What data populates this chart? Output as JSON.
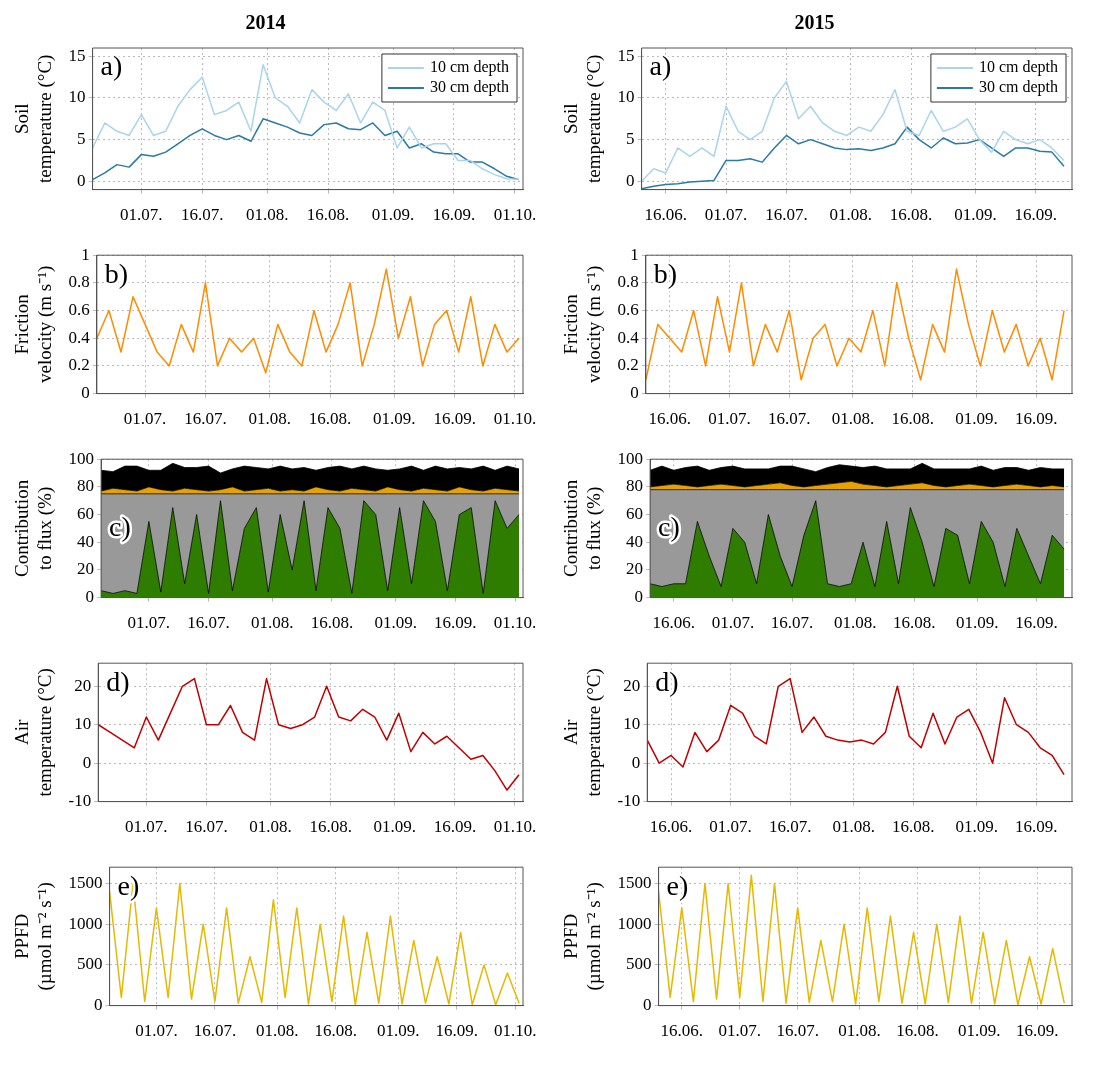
{
  "chart_data": [
    {
      "type": "line",
      "title": "2014",
      "ylabel": "Soil temperature (°C)",
      "annotations": [
        "a)"
      ],
      "legend": "top right",
      "grid": true,
      "x": [
        "2014-06-19",
        "2014-06-22",
        "2014-06-25",
        "2014-06-28",
        "2014-07-01",
        "2014-07-04",
        "2014-07-07",
        "2014-07-10",
        "2014-07-13",
        "2014-07-16",
        "2014-07-19",
        "2014-07-22",
        "2014-07-25",
        "2014-07-28",
        "2014-07-31",
        "2014-08-03",
        "2014-08-06",
        "2014-08-09",
        "2014-08-12",
        "2014-08-15",
        "2014-08-18",
        "2014-08-21",
        "2014-08-24",
        "2014-08-27",
        "2014-08-30",
        "2014-09-02",
        "2014-09-05",
        "2014-09-08",
        "2014-09-11",
        "2014-09-14",
        "2014-09-17",
        "2014-09-20",
        "2014-09-23",
        "2014-09-26",
        "2014-09-29",
        "2014-10-02"
      ],
      "xlim": [
        "2014-06-19",
        "2014-10-03"
      ],
      "xticks": [
        {
          "value": "2014-07-01",
          "label": "01.07."
        },
        {
          "value": "2014-07-16",
          "label": "16.07."
        },
        {
          "value": "2014-08-01",
          "label": "01.08."
        },
        {
          "value": "2014-08-16",
          "label": "16.08."
        },
        {
          "value": "2014-09-01",
          "label": "01.09."
        },
        {
          "value": "2014-09-16",
          "label": "16.09."
        },
        {
          "value": "2014-10-01",
          "label": "01.10."
        }
      ],
      "ylim": [
        -1,
        16
      ],
      "yticks": [
        0,
        5,
        10,
        15
      ],
      "series": [
        {
          "name": "10 cm depth",
          "color": "#a8d5ec",
          "values": [
            4,
            7,
            6,
            5.5,
            8,
            5.5,
            6,
            9,
            11,
            12.5,
            8,
            8.5,
            9.5,
            6,
            14,
            10,
            9,
            7,
            11,
            9.5,
            8.5,
            10.5,
            7,
            9.5,
            8.5,
            4,
            6.5,
            4,
            4.5,
            4.5,
            2.5,
            2.5,
            1.5,
            0.8,
            0.3,
            0.2
          ]
        },
        {
          "name": "30 cm depth",
          "color": "#2a7aa8",
          "values": [
            0.2,
            1,
            2,
            1.7,
            3.2,
            3,
            3.5,
            4.5,
            5.5,
            6.3,
            5.5,
            5,
            5.5,
            4.8,
            7.5,
            7,
            6.5,
            5.8,
            5.5,
            6.8,
            7,
            6.3,
            6.2,
            7,
            5.5,
            6,
            4,
            4.5,
            3.5,
            3.3,
            3.3,
            2.3,
            2.3,
            1.5,
            0.6,
            0.2
          ]
        }
      ]
    },
    {
      "type": "line",
      "title": "2015",
      "ylabel": "Soil temperature (°C)",
      "annotations": [
        "a)"
      ],
      "legend": "top right",
      "grid": true,
      "x": [
        "2015-06-10",
        "2015-06-13",
        "2015-06-16",
        "2015-06-19",
        "2015-06-22",
        "2015-06-25",
        "2015-06-28",
        "2015-07-01",
        "2015-07-04",
        "2015-07-07",
        "2015-07-10",
        "2015-07-13",
        "2015-07-16",
        "2015-07-19",
        "2015-07-22",
        "2015-07-25",
        "2015-07-28",
        "2015-07-31",
        "2015-08-03",
        "2015-08-06",
        "2015-08-09",
        "2015-08-12",
        "2015-08-15",
        "2015-08-18",
        "2015-08-21",
        "2015-08-24",
        "2015-08-27",
        "2015-08-30",
        "2015-09-02",
        "2015-09-05",
        "2015-09-08",
        "2015-09-11",
        "2015-09-14",
        "2015-09-17",
        "2015-09-20",
        "2015-09-23"
      ],
      "xlim": [
        "2015-06-10",
        "2015-09-25"
      ],
      "xticks": [
        {
          "value": "2015-06-16",
          "label": "16.06."
        },
        {
          "value": "2015-07-01",
          "label": "01.07."
        },
        {
          "value": "2015-07-16",
          "label": "16.07."
        },
        {
          "value": "2015-08-01",
          "label": "01.08."
        },
        {
          "value": "2015-08-16",
          "label": "16.08."
        },
        {
          "value": "2015-09-01",
          "label": "01.09."
        },
        {
          "value": "2015-09-16",
          "label": "16.09."
        }
      ],
      "ylim": [
        -1,
        16
      ],
      "yticks": [
        0,
        5,
        10,
        15
      ],
      "series": [
        {
          "name": "10 cm depth",
          "color": "#a8d5ec",
          "values": [
            0,
            1.5,
            1,
            4,
            3,
            4,
            3,
            9,
            6,
            5,
            6,
            10,
            12,
            7.5,
            9,
            7,
            6,
            5.5,
            6.5,
            6,
            8,
            11,
            6,
            5.5,
            8.5,
            6,
            6.5,
            7.5,
            5,
            3.5,
            6,
            5,
            4.5,
            5,
            4,
            2.5
          ]
        },
        {
          "name": "30 cm depth",
          "color": "#2a7aa8",
          "values": [
            -0.9,
            -0.6,
            -0.4,
            -0.3,
            -0.1,
            0,
            0.1,
            2.5,
            2.5,
            2.7,
            2.3,
            4,
            5.5,
            4.5,
            5,
            4.5,
            4,
            3.8,
            3.9,
            3.7,
            4,
            4.5,
            6.5,
            5,
            4,
            5.2,
            4.5,
            4.6,
            5,
            4,
            3,
            4,
            4,
            3.6,
            3.5,
            1.8
          ]
        }
      ]
    },
    {
      "type": "line",
      "ylabel": "Friction velocity (m s⁻¹)",
      "annotations": [
        "b)"
      ],
      "grid": true,
      "x": [
        "2014-06-19",
        "2014-06-22",
        "2014-06-25",
        "2014-06-28",
        "2014-07-01",
        "2014-07-04",
        "2014-07-07",
        "2014-07-10",
        "2014-07-13",
        "2014-07-16",
        "2014-07-19",
        "2014-07-22",
        "2014-07-25",
        "2014-07-28",
        "2014-07-31",
        "2014-08-03",
        "2014-08-06",
        "2014-08-09",
        "2014-08-12",
        "2014-08-15",
        "2014-08-18",
        "2014-08-21",
        "2014-08-24",
        "2014-08-27",
        "2014-08-30",
        "2014-09-02",
        "2014-09-05",
        "2014-09-08",
        "2014-09-11",
        "2014-09-14",
        "2014-09-17",
        "2014-09-20",
        "2014-09-23",
        "2014-09-26",
        "2014-09-29",
        "2014-10-02"
      ],
      "xlim": [
        "2014-06-19",
        "2014-10-03"
      ],
      "xticks": [
        {
          "value": "2014-07-01",
          "label": "01.07."
        },
        {
          "value": "2014-07-16",
          "label": "16.07."
        },
        {
          "value": "2014-08-01",
          "label": "01.08."
        },
        {
          "value": "2014-08-16",
          "label": "16.08."
        },
        {
          "value": "2014-09-01",
          "label": "01.09."
        },
        {
          "value": "2014-09-16",
          "label": "16.09."
        },
        {
          "value": "2014-10-01",
          "label": "01.10."
        }
      ],
      "ylim": [
        0,
        1
      ],
      "yticks": [
        0,
        0.2,
        0.4,
        0.6,
        0.8,
        1
      ],
      "series": [
        {
          "color": "#ff8c00",
          "values": [
            0.4,
            0.6,
            0.3,
            0.7,
            0.5,
            0.3,
            0.2,
            0.5,
            0.3,
            0.8,
            0.2,
            0.4,
            0.3,
            0.4,
            0.15,
            0.5,
            0.3,
            0.2,
            0.6,
            0.3,
            0.5,
            0.8,
            0.2,
            0.5,
            0.9,
            0.4,
            0.7,
            0.2,
            0.5,
            0.6,
            0.3,
            0.7,
            0.2,
            0.5,
            0.3,
            0.4
          ]
        }
      ]
    },
    {
      "type": "line",
      "ylabel": "Friction velocity (m s⁻¹)",
      "annotations": [
        "b)"
      ],
      "grid": true,
      "x": [
        "2015-06-10",
        "2015-06-13",
        "2015-06-16",
        "2015-06-19",
        "2015-06-22",
        "2015-06-25",
        "2015-06-28",
        "2015-07-01",
        "2015-07-04",
        "2015-07-07",
        "2015-07-10",
        "2015-07-13",
        "2015-07-16",
        "2015-07-19",
        "2015-07-22",
        "2015-07-25",
        "2015-07-28",
        "2015-07-31",
        "2015-08-03",
        "2015-08-06",
        "2015-08-09",
        "2015-08-12",
        "2015-08-15",
        "2015-08-18",
        "2015-08-21",
        "2015-08-24",
        "2015-08-27",
        "2015-08-30",
        "2015-09-02",
        "2015-09-05",
        "2015-09-08",
        "2015-09-11",
        "2015-09-14",
        "2015-09-17",
        "2015-09-20",
        "2015-09-23"
      ],
      "xlim": [
        "2015-06-10",
        "2015-09-25"
      ],
      "xticks": [
        {
          "value": "2015-06-16",
          "label": "16.06."
        },
        {
          "value": "2015-07-01",
          "label": "01.07."
        },
        {
          "value": "2015-07-16",
          "label": "16.07."
        },
        {
          "value": "2015-08-01",
          "label": "01.08."
        },
        {
          "value": "2015-08-16",
          "label": "16.08."
        },
        {
          "value": "2015-09-01",
          "label": "01.09."
        },
        {
          "value": "2015-09-16",
          "label": "16.09."
        }
      ],
      "ylim": [
        0,
        1
      ],
      "yticks": [
        0,
        0.2,
        0.4,
        0.6,
        0.8,
        1
      ],
      "series": [
        {
          "color": "#ff8c00",
          "values": [
            0.1,
            0.5,
            0.4,
            0.3,
            0.6,
            0.2,
            0.7,
            0.3,
            0.8,
            0.2,
            0.5,
            0.3,
            0.6,
            0.1,
            0.4,
            0.5,
            0.2,
            0.4,
            0.3,
            0.6,
            0.2,
            0.8,
            0.4,
            0.1,
            0.5,
            0.3,
            0.9,
            0.5,
            0.2,
            0.6,
            0.3,
            0.5,
            0.2,
            0.4,
            0.1,
            0.6
          ]
        }
      ]
    },
    {
      "type": "area",
      "stacked": true,
      "ylabel": "Contribution to flux (%)",
      "annotations": [
        "c)"
      ],
      "grid": true,
      "x": [
        "2014-06-19",
        "2014-06-22",
        "2014-06-25",
        "2014-06-28",
        "2014-07-01",
        "2014-07-04",
        "2014-07-07",
        "2014-07-10",
        "2014-07-13",
        "2014-07-16",
        "2014-07-19",
        "2014-07-22",
        "2014-07-25",
        "2014-07-28",
        "2014-07-31",
        "2014-08-03",
        "2014-08-06",
        "2014-08-09",
        "2014-08-12",
        "2014-08-15",
        "2014-08-18",
        "2014-08-21",
        "2014-08-24",
        "2014-08-27",
        "2014-08-30",
        "2014-09-02",
        "2014-09-05",
        "2014-09-08",
        "2014-09-11",
        "2014-09-14",
        "2014-09-17",
        "2014-09-20",
        "2014-09-23",
        "2014-09-26",
        "2014-09-29",
        "2014-10-02"
      ],
      "xlim": [
        "2014-06-19",
        "2014-10-03"
      ],
      "xticks": [
        {
          "value": "2014-07-01",
          "label": "01.07."
        },
        {
          "value": "2014-07-16",
          "label": "16.07."
        },
        {
          "value": "2014-08-01",
          "label": "01.08."
        },
        {
          "value": "2014-08-16",
          "label": "16.08."
        },
        {
          "value": "2014-09-01",
          "label": "01.09."
        },
        {
          "value": "2014-09-16",
          "label": "16.09."
        },
        {
          "value": "2014-10-01",
          "label": "01.10."
        }
      ],
      "ylim": [
        0,
        100
      ],
      "yticks": [
        0,
        20,
        40,
        60,
        80,
        100
      ],
      "series": [
        {
          "color": "#2e7d00",
          "values": [
            5,
            3,
            5,
            3,
            55,
            4,
            65,
            10,
            60,
            3,
            70,
            5,
            50,
            65,
            4,
            60,
            20,
            70,
            5,
            65,
            50,
            3,
            70,
            60,
            5,
            65,
            10,
            70,
            55,
            5,
            60,
            65,
            3,
            70,
            50,
            60
          ]
        },
        {
          "color": "#999999",
          "values": [
            70,
            72,
            70,
            72,
            20,
            71,
            10,
            65,
            15,
            72,
            5,
            70,
            25,
            10,
            71,
            15,
            55,
            5,
            70,
            10,
            25,
            72,
            5,
            15,
            70,
            10,
            65,
            5,
            20,
            70,
            15,
            10,
            72,
            5,
            25,
            15
          ]
        },
        {
          "color": "#e8a200",
          "values": [
            2,
            4,
            3,
            2,
            5,
            3,
            2,
            4,
            3,
            2,
            3,
            5,
            2,
            3,
            4,
            2,
            3,
            2,
            5,
            3,
            2,
            4,
            3,
            2,
            5,
            3,
            2,
            4,
            3,
            2,
            5,
            3,
            2,
            4,
            3,
            2
          ]
        },
        {
          "color": "#000000",
          "values": [
            15,
            12,
            17,
            18,
            12,
            14,
            20,
            15,
            16,
            18,
            12,
            13,
            18,
            16,
            14,
            18,
            15,
            17,
            12,
            16,
            18,
            14,
            17,
            16,
            12,
            15,
            18,
            13,
            17,
            16,
            14,
            15,
            18,
            13,
            17,
            16
          ]
        }
      ]
    },
    {
      "type": "area",
      "stacked": true,
      "ylabel": "Contribution to flux (%)",
      "annotations": [
        "c)"
      ],
      "grid": true,
      "x": [
        "2015-06-10",
        "2015-06-13",
        "2015-06-16",
        "2015-06-19",
        "2015-06-22",
        "2015-06-25",
        "2015-06-28",
        "2015-07-01",
        "2015-07-04",
        "2015-07-07",
        "2015-07-10",
        "2015-07-13",
        "2015-07-16",
        "2015-07-19",
        "2015-07-22",
        "2015-07-25",
        "2015-07-28",
        "2015-07-31",
        "2015-08-03",
        "2015-08-06",
        "2015-08-09",
        "2015-08-12",
        "2015-08-15",
        "2015-08-18",
        "2015-08-21",
        "2015-08-24",
        "2015-08-27",
        "2015-08-30",
        "2015-09-02",
        "2015-09-05",
        "2015-09-08",
        "2015-09-11",
        "2015-09-14",
        "2015-09-17",
        "2015-09-20",
        "2015-09-23"
      ],
      "xlim": [
        "2015-06-10",
        "2015-09-25"
      ],
      "xticks": [
        {
          "value": "2015-06-16",
          "label": "16.06."
        },
        {
          "value": "2015-07-01",
          "label": "01.07."
        },
        {
          "value": "2015-07-16",
          "label": "16.07."
        },
        {
          "value": "2015-08-01",
          "label": "01.08."
        },
        {
          "value": "2015-08-16",
          "label": "16.08."
        },
        {
          "value": "2015-09-01",
          "label": "01.09."
        },
        {
          "value": "2015-09-16",
          "label": "16.09."
        }
      ],
      "ylim": [
        0,
        100
      ],
      "yticks": [
        0,
        20,
        40,
        60,
        80,
        100
      ],
      "series": [
        {
          "color": "#2e7d00",
          "values": [
            10,
            8,
            10,
            10,
            55,
            30,
            8,
            50,
            40,
            10,
            60,
            30,
            8,
            45,
            70,
            10,
            8,
            10,
            40,
            8,
            55,
            10,
            65,
            40,
            8,
            50,
            45,
            10,
            55,
            40,
            8,
            50,
            30,
            10,
            45,
            35
          ]
        },
        {
          "color": "#999999",
          "values": [
            68,
            70,
            68,
            68,
            23,
            48,
            70,
            28,
            38,
            68,
            18,
            48,
            70,
            33,
            8,
            68,
            70,
            68,
            38,
            70,
            23,
            68,
            13,
            38,
            70,
            28,
            33,
            68,
            23,
            38,
            70,
            28,
            48,
            68,
            33,
            43
          ]
        },
        {
          "color": "#e8a200",
          "values": [
            2,
            3,
            4,
            3,
            2,
            3,
            4,
            3,
            2,
            3,
            4,
            5,
            3,
            2,
            3,
            4,
            5,
            6,
            4,
            3,
            2,
            3,
            4,
            5,
            3,
            2,
            3,
            4,
            3,
            2,
            3,
            4,
            3,
            2,
            3,
            2
          ]
        },
        {
          "color": "#000000",
          "values": [
            12,
            14,
            10,
            13,
            15,
            11,
            12,
            14,
            13,
            12,
            11,
            12,
            14,
            13,
            10,
            12,
            13,
            11,
            12,
            14,
            13,
            12,
            11,
            14,
            12,
            13,
            12,
            11,
            14,
            12,
            13,
            12,
            11,
            14,
            12,
            13
          ]
        }
      ]
    },
    {
      "type": "line",
      "ylabel": "Air temperature (°C)",
      "annotations": [
        "d)"
      ],
      "grid": true,
      "x": [
        "2014-06-19",
        "2014-06-22",
        "2014-06-25",
        "2014-06-28",
        "2014-07-01",
        "2014-07-04",
        "2014-07-07",
        "2014-07-10",
        "2014-07-13",
        "2014-07-16",
        "2014-07-19",
        "2014-07-22",
        "2014-07-25",
        "2014-07-28",
        "2014-07-31",
        "2014-08-03",
        "2014-08-06",
        "2014-08-09",
        "2014-08-12",
        "2014-08-15",
        "2014-08-18",
        "2014-08-21",
        "2014-08-24",
        "2014-08-27",
        "2014-08-30",
        "2014-09-02",
        "2014-09-05",
        "2014-09-08",
        "2014-09-11",
        "2014-09-14",
        "2014-09-17",
        "2014-09-20",
        "2014-09-23",
        "2014-09-26",
        "2014-09-29",
        "2014-10-02"
      ],
      "xlim": [
        "2014-06-19",
        "2014-10-03"
      ],
      "xticks": [
        {
          "value": "2014-07-01",
          "label": "01.07."
        },
        {
          "value": "2014-07-16",
          "label": "16.07."
        },
        {
          "value": "2014-08-01",
          "label": "01.08."
        },
        {
          "value": "2014-08-16",
          "label": "16.08."
        },
        {
          "value": "2014-09-01",
          "label": "01.09."
        },
        {
          "value": "2014-09-16",
          "label": "16.09."
        },
        {
          "value": "2014-10-01",
          "label": "01.10."
        }
      ],
      "ylim": [
        -10,
        26
      ],
      "yticks": [
        -10,
        0,
        10,
        20
      ],
      "series": [
        {
          "color": "#c00000",
          "values": [
            10,
            8,
            6,
            4,
            12,
            6,
            13,
            20,
            22,
            10,
            10,
            15,
            8,
            6,
            22,
            10,
            9,
            10,
            12,
            20,
            12,
            11,
            14,
            12,
            6,
            13,
            3,
            8,
            5,
            7,
            4,
            1,
            2,
            -2,
            -7,
            -3
          ]
        }
      ]
    },
    {
      "type": "line",
      "ylabel": "Air temperature (°C)",
      "annotations": [
        "d)"
      ],
      "grid": true,
      "x": [
        "2015-06-10",
        "2015-06-13",
        "2015-06-16",
        "2015-06-19",
        "2015-06-22",
        "2015-06-25",
        "2015-06-28",
        "2015-07-01",
        "2015-07-04",
        "2015-07-07",
        "2015-07-10",
        "2015-07-13",
        "2015-07-16",
        "2015-07-19",
        "2015-07-22",
        "2015-07-25",
        "2015-07-28",
        "2015-07-31",
        "2015-08-03",
        "2015-08-06",
        "2015-08-09",
        "2015-08-12",
        "2015-08-15",
        "2015-08-18",
        "2015-08-21",
        "2015-08-24",
        "2015-08-27",
        "2015-08-30",
        "2015-09-02",
        "2015-09-05",
        "2015-09-08",
        "2015-09-11",
        "2015-09-14",
        "2015-09-17",
        "2015-09-20",
        "2015-09-23"
      ],
      "xlim": [
        "2015-06-10",
        "2015-09-25"
      ],
      "xticks": [
        {
          "value": "2015-06-16",
          "label": "16.06."
        },
        {
          "value": "2015-07-01",
          "label": "01.07."
        },
        {
          "value": "2015-07-16",
          "label": "16.07."
        },
        {
          "value": "2015-08-01",
          "label": "01.08."
        },
        {
          "value": "2015-08-16",
          "label": "16.08."
        },
        {
          "value": "2015-09-01",
          "label": "01.09."
        },
        {
          "value": "2015-09-16",
          "label": "16.09."
        }
      ],
      "ylim": [
        -10,
        26
      ],
      "yticks": [
        -10,
        0,
        10,
        20
      ],
      "series": [
        {
          "color": "#c00000",
          "values": [
            6,
            0,
            2,
            -1,
            8,
            3,
            6,
            15,
            13,
            7,
            5,
            20,
            22,
            8,
            12,
            7,
            6,
            5.5,
            6,
            5,
            8,
            20,
            7,
            4,
            13,
            5,
            12,
            14,
            8,
            0,
            17,
            10,
            8,
            4,
            2,
            -3
          ]
        }
      ]
    },
    {
      "type": "line",
      "ylabel": "PPFD (µmol m⁻² s⁻¹)",
      "annotations": [
        "e)"
      ],
      "grid": true,
      "x": [
        "2014-06-19",
        "2014-06-22",
        "2014-06-25",
        "2014-06-28",
        "2014-07-01",
        "2014-07-04",
        "2014-07-07",
        "2014-07-10",
        "2014-07-13",
        "2014-07-16",
        "2014-07-19",
        "2014-07-22",
        "2014-07-25",
        "2014-07-28",
        "2014-07-31",
        "2014-08-03",
        "2014-08-06",
        "2014-08-09",
        "2014-08-12",
        "2014-08-15",
        "2014-08-18",
        "2014-08-21",
        "2014-08-24",
        "2014-08-27",
        "2014-08-30",
        "2014-09-02",
        "2014-09-05",
        "2014-09-08",
        "2014-09-11",
        "2014-09-14",
        "2014-09-17",
        "2014-09-20",
        "2014-09-23",
        "2014-09-26",
        "2014-09-29",
        "2014-10-02"
      ],
      "xlim": [
        "2014-06-19",
        "2014-10-03"
      ],
      "xticks": [
        {
          "value": "2014-07-01",
          "label": "01.07."
        },
        {
          "value": "2014-07-16",
          "label": "16.07."
        },
        {
          "value": "2014-08-01",
          "label": "01.08."
        },
        {
          "value": "2014-08-16",
          "label": "16.08."
        },
        {
          "value": "2014-09-01",
          "label": "01.09."
        },
        {
          "value": "2014-09-16",
          "label": "16.09."
        },
        {
          "value": "2014-10-01",
          "label": "01.10."
        }
      ],
      "ylim": [
        0,
        1700
      ],
      "yticks": [
        0,
        500,
        1000,
        1500
      ],
      "series": [
        {
          "color": "#e6b800",
          "values": [
            1400,
            100,
            1500,
            50,
            1200,
            100,
            1500,
            80,
            1000,
            50,
            1200,
            30,
            600,
            40,
            1300,
            100,
            1200,
            20,
            1000,
            50,
            1100,
            10,
            900,
            30,
            1100,
            20,
            800,
            30,
            600,
            20,
            900,
            10,
            500,
            10,
            400,
            30
          ]
        }
      ]
    },
    {
      "type": "line",
      "ylabel": "PPFD (µmol m⁻² s⁻¹)",
      "annotations": [
        "e)"
      ],
      "grid": true,
      "x": [
        "2015-06-10",
        "2015-06-13",
        "2015-06-16",
        "2015-06-19",
        "2015-06-22",
        "2015-06-25",
        "2015-06-28",
        "2015-07-01",
        "2015-07-04",
        "2015-07-07",
        "2015-07-10",
        "2015-07-13",
        "2015-07-16",
        "2015-07-19",
        "2015-07-22",
        "2015-07-25",
        "2015-07-28",
        "2015-07-31",
        "2015-08-03",
        "2015-08-06",
        "2015-08-09",
        "2015-08-12",
        "2015-08-15",
        "2015-08-18",
        "2015-08-21",
        "2015-08-24",
        "2015-08-27",
        "2015-08-30",
        "2015-09-02",
        "2015-09-05",
        "2015-09-08",
        "2015-09-11",
        "2015-09-14",
        "2015-09-17",
        "2015-09-20",
        "2015-09-23"
      ],
      "xlim": [
        "2015-06-10",
        "2015-09-25"
      ],
      "xticks": [
        {
          "value": "2015-06-16",
          "label": "16.06."
        },
        {
          "value": "2015-07-01",
          "label": "01.07."
        },
        {
          "value": "2015-07-16",
          "label": "16.07."
        },
        {
          "value": "2015-08-01",
          "label": "01.08."
        },
        {
          "value": "2015-08-16",
          "label": "16.08."
        },
        {
          "value": "2015-09-01",
          "label": "01.09."
        },
        {
          "value": "2015-09-16",
          "label": "16.09."
        }
      ],
      "ylim": [
        0,
        1700
      ],
      "yticks": [
        0,
        500,
        1000,
        1500
      ],
      "series": [
        {
          "color": "#e6b800",
          "values": [
            1400,
            100,
            1200,
            50,
            1500,
            80,
            1500,
            100,
            1600,
            50,
            1500,
            30,
            1200,
            40,
            800,
            50,
            1000,
            20,
            1200,
            50,
            1100,
            30,
            900,
            20,
            1000,
            40,
            1100,
            30,
            900,
            20,
            800,
            10,
            600,
            20,
            700,
            30
          ]
        }
      ]
    }
  ]
}
